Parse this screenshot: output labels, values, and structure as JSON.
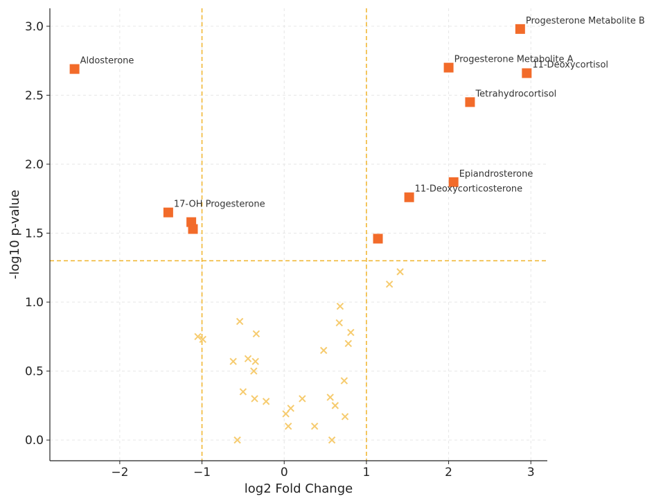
{
  "chart_data": {
    "type": "scatter",
    "title": "",
    "xlabel": "log2 Fold Change",
    "ylabel": "-log10 p-value",
    "xlim": [
      -2.85,
      3.2
    ],
    "ylim": [
      -0.15,
      3.13
    ],
    "xticks": [
      -2,
      -1,
      0,
      1,
      2,
      3
    ],
    "xtick_labels": [
      "−2",
      "−1",
      "0",
      "1",
      "2",
      "3"
    ],
    "yticks": [
      0.0,
      0.5,
      1.0,
      1.5,
      2.0,
      2.5,
      3.0
    ],
    "ytick_labels": [
      "0.0",
      "0.5",
      "1.0",
      "1.5",
      "2.0",
      "2.5",
      "3.0"
    ],
    "grid": true,
    "thresholds": {
      "fold_change": [
        -1,
        1
      ],
      "neg_log10_p": 1.3
    },
    "colors": {
      "significant": "#f26b2a",
      "not_significant": "#f6cb6e",
      "threshold": "#f0b32a",
      "grid": "#e6e6e6",
      "axis": "#222222"
    },
    "significant": [
      {
        "x": -2.55,
        "y": 2.69,
        "label": "Aldosterone"
      },
      {
        "x": -1.41,
        "y": 1.65,
        "label": "17-OH Progesterone"
      },
      {
        "x": -1.13,
        "y": 1.58,
        "label": ""
      },
      {
        "x": -1.11,
        "y": 1.53,
        "label": ""
      },
      {
        "x": 1.14,
        "y": 1.46,
        "label": ""
      },
      {
        "x": 1.52,
        "y": 1.76,
        "label": "11-Deoxycorticosterone"
      },
      {
        "x": 2.06,
        "y": 1.87,
        "label": "Epiandrosterone"
      },
      {
        "x": 2.0,
        "y": 2.7,
        "label": "Progesterone Metabolite A"
      },
      {
        "x": 2.26,
        "y": 2.45,
        "label": "Tetrahydrocortisol"
      },
      {
        "x": 2.87,
        "y": 2.98,
        "label": "Progesterone Metabolite B"
      },
      {
        "x": 2.95,
        "y": 2.66,
        "label": "11-Deoxycortisol"
      }
    ],
    "not_significant": [
      {
        "x": 1.41,
        "y": 1.22
      },
      {
        "x": 1.28,
        "y": 1.13
      },
      {
        "x": 0.68,
        "y": 0.97
      },
      {
        "x": 0.67,
        "y": 0.85
      },
      {
        "x": 0.81,
        "y": 0.78
      },
      {
        "x": 0.78,
        "y": 0.7
      },
      {
        "x": 0.48,
        "y": 0.65
      },
      {
        "x": 0.73,
        "y": 0.43
      },
      {
        "x": -0.54,
        "y": 0.86
      },
      {
        "x": -0.34,
        "y": 0.77
      },
      {
        "x": -1.05,
        "y": 0.75
      },
      {
        "x": -0.99,
        "y": 0.73
      },
      {
        "x": -0.62,
        "y": 0.57
      },
      {
        "x": -0.44,
        "y": 0.59
      },
      {
        "x": -0.35,
        "y": 0.57
      },
      {
        "x": -0.37,
        "y": 0.5
      },
      {
        "x": -0.5,
        "y": 0.35
      },
      {
        "x": -0.36,
        "y": 0.3
      },
      {
        "x": -0.22,
        "y": 0.28
      },
      {
        "x": 0.22,
        "y": 0.3
      },
      {
        "x": 0.08,
        "y": 0.23
      },
      {
        "x": 0.02,
        "y": 0.19
      },
      {
        "x": 0.05,
        "y": 0.1
      },
      {
        "x": 0.37,
        "y": 0.1
      },
      {
        "x": 0.56,
        "y": 0.31
      },
      {
        "x": 0.62,
        "y": 0.25
      },
      {
        "x": 0.74,
        "y": 0.17
      },
      {
        "x": -0.57,
        "y": 0.0
      },
      {
        "x": 0.58,
        "y": 0.0
      }
    ]
  }
}
